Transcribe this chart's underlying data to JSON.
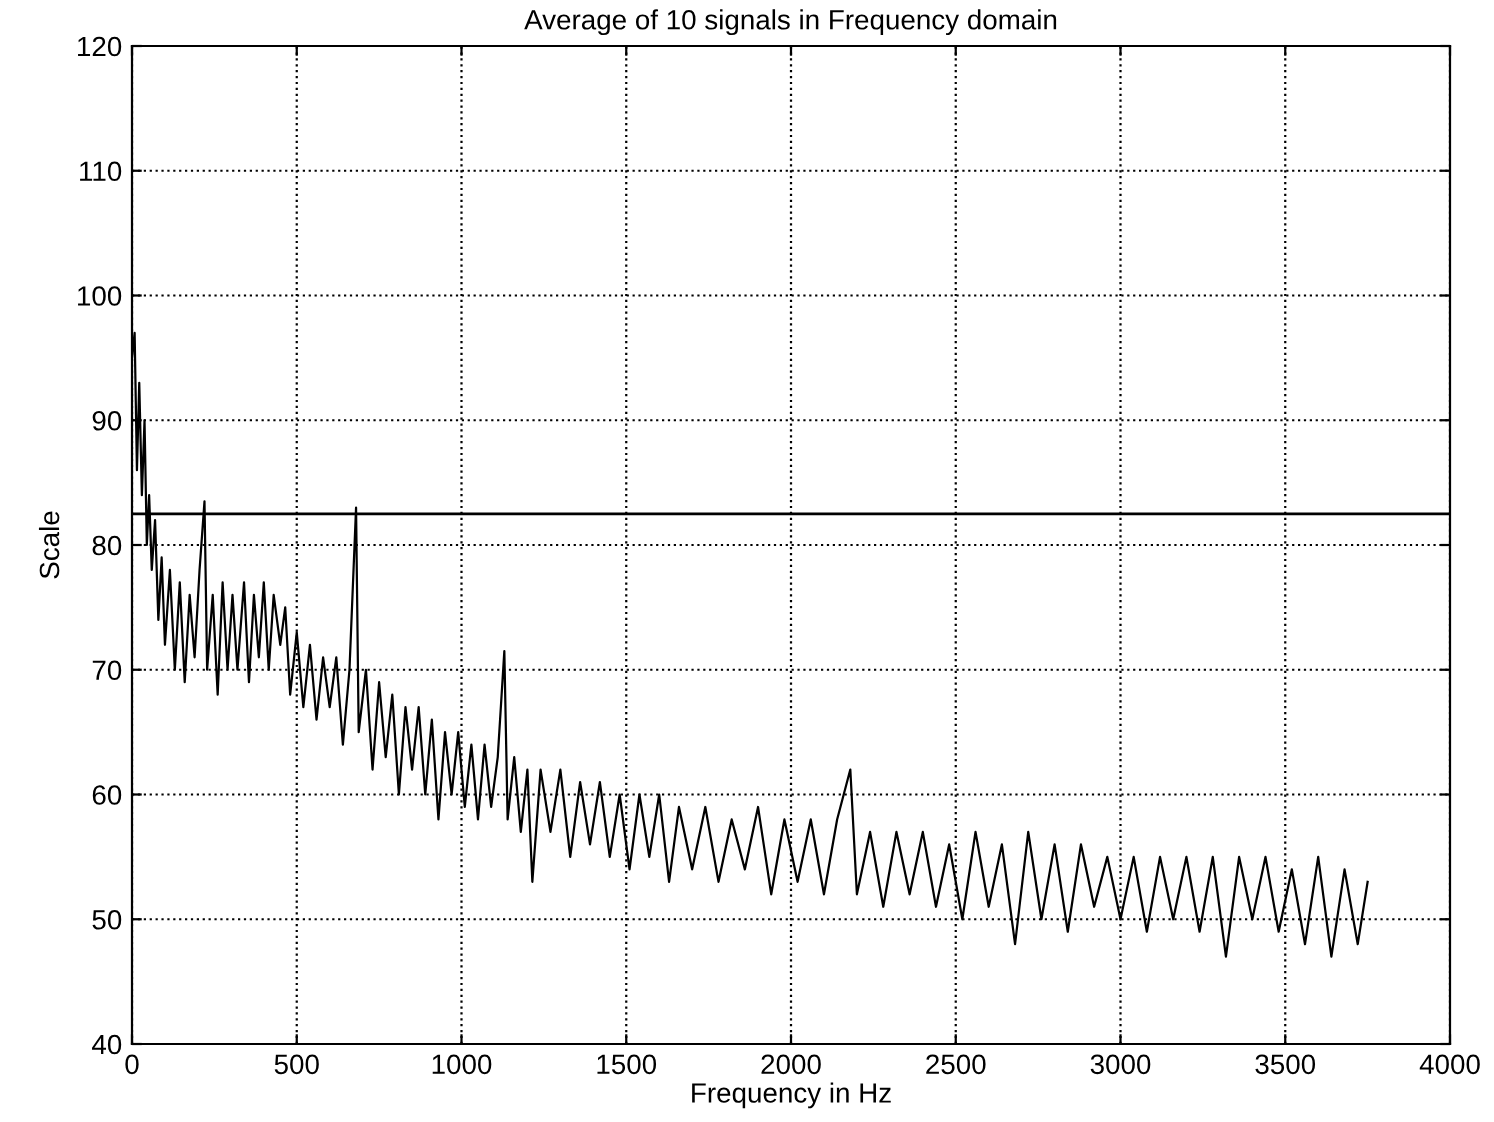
{
  "chart_data": {
    "type": "line",
    "title": "Average of 10 signals in Frequency domain",
    "xlabel": "Frequency in Hz",
    "ylabel": "Scale",
    "series": [
      {
        "color": "#000000",
        "x": [
          0,
          8,
          15,
          22,
          30,
          38,
          45,
          52,
          60,
          70,
          80,
          90,
          100,
          115,
          130,
          145,
          160,
          175,
          190,
          205,
          220,
          228,
          245,
          260,
          275,
          290,
          305,
          320,
          340,
          355,
          370,
          385,
          400,
          415,
          430,
          450,
          465,
          480,
          500,
          520,
          540,
          560,
          580,
          600,
          620,
          640,
          660,
          680,
          688,
          710,
          730,
          750,
          770,
          790,
          810,
          830,
          850,
          870,
          890,
          910,
          930,
          950,
          970,
          990,
          1010,
          1030,
          1050,
          1070,
          1090,
          1110,
          1130,
          1140,
          1160,
          1180,
          1200,
          1215,
          1240,
          1270,
          1300,
          1330,
          1360,
          1390,
          1420,
          1450,
          1480,
          1510,
          1540,
          1570,
          1600,
          1630,
          1660,
          1700,
          1740,
          1780,
          1820,
          1860,
          1900,
          1940,
          1980,
          2020,
          2060,
          2100,
          2140,
          2180,
          2200,
          2240,
          2280,
          2320,
          2360,
          2400,
          2440,
          2480,
          2520,
          2560,
          2600,
          2640,
          2680,
          2720,
          2760,
          2800,
          2840,
          2880,
          2920,
          2960,
          3000,
          3040,
          3080,
          3120,
          3160,
          3200,
          3240,
          3280,
          3320,
          3360,
          3400,
          3440,
          3480,
          3520,
          3560,
          3600,
          3640,
          3680,
          3720,
          3750
        ],
        "values": [
          95,
          97,
          86,
          93,
          84,
          90,
          80,
          84,
          78,
          82,
          74,
          79,
          72,
          78,
          70,
          77,
          69,
          76,
          71,
          78,
          83.5,
          70,
          76,
          68,
          77,
          70,
          76,
          70,
          77,
          69,
          76,
          71,
          77,
          70,
          76,
          72,
          75,
          68,
          73,
          67,
          72,
          66,
          71,
          67,
          71,
          64,
          70,
          83,
          65,
          70,
          62,
          69,
          63,
          68,
          60,
          67,
          62,
          67,
          60,
          66,
          58,
          65,
          60,
          65,
          59,
          64,
          58,
          64,
          59,
          63,
          71.5,
          58,
          63,
          57,
          62,
          53,
          62,
          57,
          62,
          55,
          61,
          56,
          61,
          55,
          60,
          54,
          60,
          55,
          60,
          53,
          59,
          54,
          59,
          53,
          58,
          54,
          59,
          52,
          58,
          53,
          58,
          52,
          58,
          62,
          52,
          57,
          51,
          57,
          52,
          57,
          51,
          56,
          50,
          57,
          51,
          56,
          48,
          57,
          50,
          56,
          49,
          56,
          51,
          55,
          50,
          55,
          49,
          55,
          50,
          55,
          49,
          55,
          47,
          55,
          50,
          55,
          49,
          54,
          48,
          55,
          47,
          54,
          48,
          53
        ]
      }
    ],
    "xlim": [
      0,
      4000
    ],
    "xticks": [
      0,
      500,
      1000,
      1500,
      2000,
      2500,
      3000,
      3500,
      4000
    ],
    "ylim": [
      40,
      120
    ],
    "yticks": [
      40,
      50,
      60,
      70,
      80,
      90,
      100,
      110,
      120
    ],
    "ref_lines": [
      {
        "axis": "y",
        "value": 82.5,
        "color": "#000000",
        "line_style": "solid"
      }
    ],
    "grid": true,
    "line_style": "solid",
    "marker": "none"
  }
}
